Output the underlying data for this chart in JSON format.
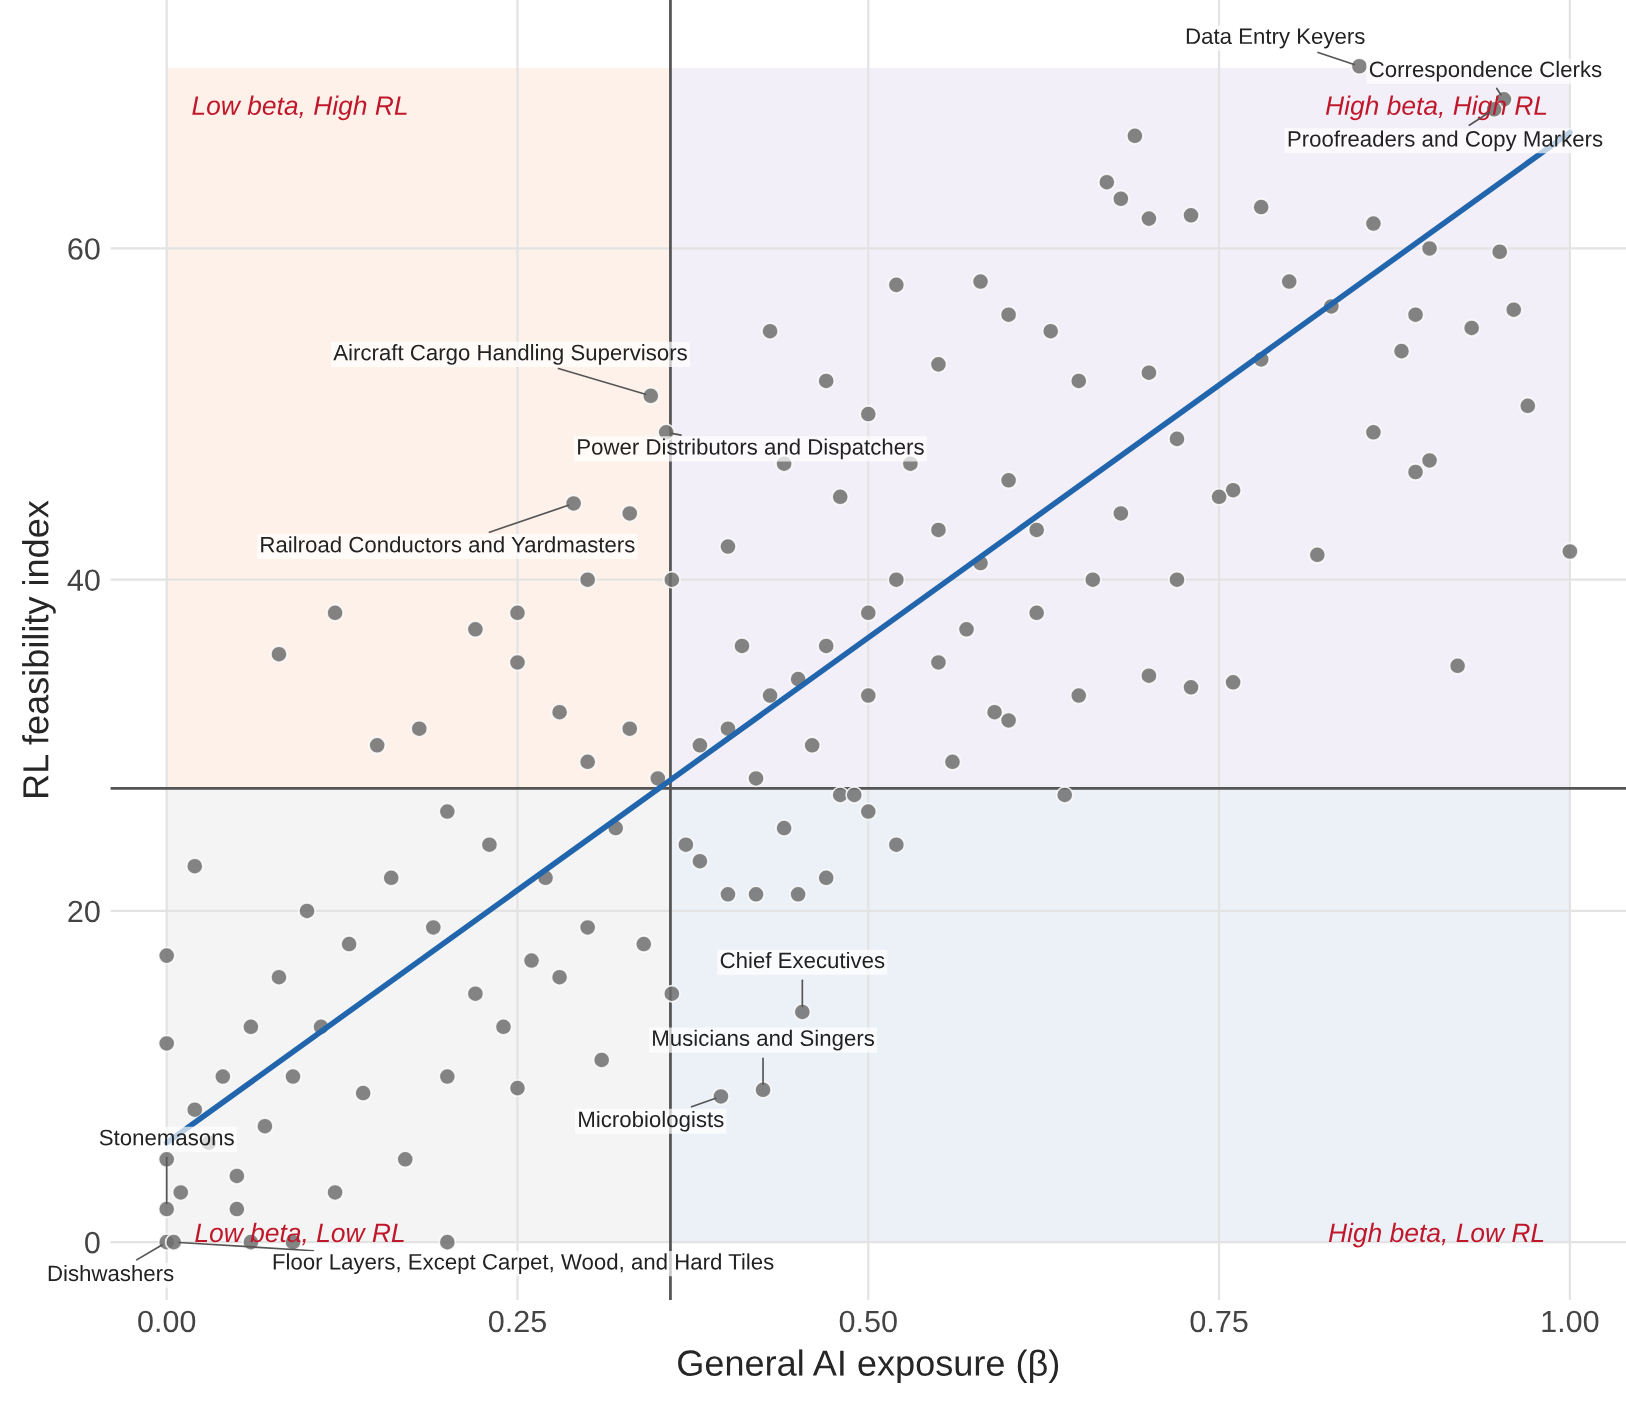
{
  "chart_data": {
    "type": "scatter",
    "xlabel": "General AI exposure (β)",
    "ylabel": "RL feasibility index",
    "xlim": [
      -0.04,
      1.04
    ],
    "ylim": [
      -3.5,
      75
    ],
    "xticks": [
      {
        "value": 0,
        "label": "0.00"
      },
      {
        "value": 0.25,
        "label": "0.25"
      },
      {
        "value": 0.5,
        "label": "0.50"
      },
      {
        "value": 0.75,
        "label": "0.75"
      },
      {
        "value": 1,
        "label": "1.00"
      }
    ],
    "yticks": [
      0,
      20,
      40,
      60
    ],
    "grid": true,
    "bands": [
      {
        "axis": "y",
        "from": 27.4,
        "to": 70.9,
        "color": "#fdf1ea"
      },
      {
        "axis": "y",
        "from": 27.4,
        "to": 70.9,
        "color": "#f3eff8"
      },
      {
        "axis": "y",
        "from": 0,
        "to": 27.4,
        "color": "#f4f4f4"
      },
      {
        "axis": "y",
        "from": 0,
        "to": 27.4,
        "color": "#ecf0f7"
      }
    ],
    "ref_lines": [
      {
        "axis": "x",
        "value": 0.359,
        "color": "#555555"
      },
      {
        "axis": "y",
        "value": 27.4,
        "color": "#555555"
      }
    ],
    "series": [
      {
        "marker": "circle",
        "color": "#6e6e6e",
        "x": [
          0.85,
          0.953,
          0.946,
          0.345,
          0.356,
          0.29,
          0.453,
          0.425,
          0.395,
          0.0,
          0.0,
          0.005,
          0.08,
          1.0,
          0.86,
          0.89,
          0.9,
          0.92,
          0.97,
          0.7,
          0.69,
          0.67,
          0.68,
          0.73,
          0.78,
          0.8,
          0.86,
          0.9,
          0.95,
          0.96,
          0.93,
          0.89,
          0.83,
          0.88,
          0.82,
          0.76,
          0.75,
          0.78,
          0.7,
          0.72,
          0.65,
          0.63,
          0.6,
          0.58,
          0.52,
          0.55,
          0.5,
          0.53,
          0.48,
          0.6,
          0.62,
          0.66,
          0.58,
          0.55,
          0.52,
          0.5,
          0.47,
          0.45,
          0.43,
          0.41,
          0.4,
          0.38,
          0.42,
          0.46,
          0.5,
          0.55,
          0.59,
          0.56,
          0.6,
          0.65,
          0.7,
          0.73,
          0.76,
          0.64,
          0.52,
          0.48,
          0.45,
          0.4,
          0.37,
          0.35,
          0.33,
          0.3,
          0.28,
          0.25,
          0.22,
          0.18,
          0.15,
          0.12,
          0.2,
          0.23,
          0.27,
          0.3,
          0.32,
          0.26,
          0.22,
          0.19,
          0.16,
          0.13,
          0.1,
          0.08,
          0.06,
          0.04,
          0.02,
          0.0,
          0.0,
          0.0,
          0.01,
          0.03,
          0.05,
          0.07,
          0.09,
          0.11,
          0.14,
          0.12,
          0.09,
          0.06,
          0.05,
          0.2,
          0.24,
          0.28,
          0.17,
          0.2,
          0.25,
          0.31,
          0.34,
          0.36,
          0.38,
          0.42,
          0.47,
          0.5,
          0.44,
          0.33,
          0.3,
          0.25,
          0.36,
          0.4,
          0.44,
          0.47,
          0.43,
          0.02,
          0.49,
          0.57,
          0.62,
          0.68,
          0.72
        ],
        "values": [
          71.0,
          69.0,
          68.4,
          51.1,
          48.9,
          44.6,
          13.9,
          9.2,
          8.8,
          2.0,
          0.0,
          0.0,
          35.5,
          41.7,
          48.9,
          46.5,
          47.2,
          34.8,
          50.5,
          61.8,
          66.8,
          64.0,
          63.0,
          62.0,
          62.5,
          58,
          61.5,
          60,
          59.8,
          56.3,
          55.2,
          56.0,
          56.5,
          53.8,
          41.5,
          45.4,
          45,
          53.3,
          52.5,
          48.5,
          52,
          55,
          56,
          58,
          57.8,
          53,
          50,
          47,
          45,
          46,
          43,
          40,
          41,
          43,
          40,
          38,
          36,
          34,
          33,
          36,
          31,
          30,
          28,
          30,
          33,
          35,
          32,
          29,
          31.5,
          33,
          34.2,
          33.5,
          33.8,
          27,
          24,
          27,
          21,
          21,
          24,
          28,
          31,
          29,
          32,
          35,
          37,
          31,
          30,
          38,
          26,
          24,
          22,
          19,
          25,
          17,
          15,
          19,
          22,
          18,
          20,
          16,
          13,
          10,
          8,
          12,
          17.3,
          5,
          3,
          6,
          4,
          7,
          10,
          13,
          9,
          3,
          0,
          0,
          2,
          10,
          13,
          16,
          5,
          0,
          9.3,
          11,
          18,
          15,
          23,
          21,
          22,
          26,
          25,
          44,
          40,
          38,
          40,
          42,
          47,
          52,
          55,
          22.7,
          27,
          37,
          38,
          44,
          40
        ]
      },
      {
        "type": "line",
        "color": "#2166ac",
        "x": [
          0,
          1
        ],
        "values": [
          6,
          67
        ]
      }
    ],
    "annotations": [
      "Low beta, High RL",
      "High beta, High RL",
      "Low beta, Low RL",
      "High beta, Low RL",
      {
        "text": "Data Entry Keyers",
        "x": 0.85,
        "y": 71.0
      },
      {
        "text": "Correspondence Clerks",
        "x": 0.953,
        "y": 69.0
      },
      {
        "text": "Proofreaders and Copy Markers",
        "x": 0.946,
        "y": 68.4
      },
      {
        "text": "Aircraft Cargo Handling Supervisors",
        "x": 0.345,
        "y": 51.1
      },
      {
        "text": "Power Distributors and Dispatchers",
        "x": 0.356,
        "y": 48.9
      },
      {
        "text": "Railroad Conductors and Yardmasters",
        "x": 0.29,
        "y": 44.6
      },
      {
        "text": "Chief Executives",
        "x": 0.453,
        "y": 13.9
      },
      {
        "text": "Musicians and Singers",
        "x": 0.425,
        "y": 9.2
      },
      {
        "text": "Microbiologists",
        "x": 0.395,
        "y": 8.8
      },
      {
        "text": "Stonemasons",
        "x": 0.0,
        "y": 2.0
      },
      {
        "text": "Dishwashers",
        "x": 0.0,
        "y": 0.0
      },
      {
        "text": "Floor Layers, Except Carpet, Wood, and Hard Tiles",
        "x": 0.005,
        "y": 0.0
      }
    ]
  }
}
